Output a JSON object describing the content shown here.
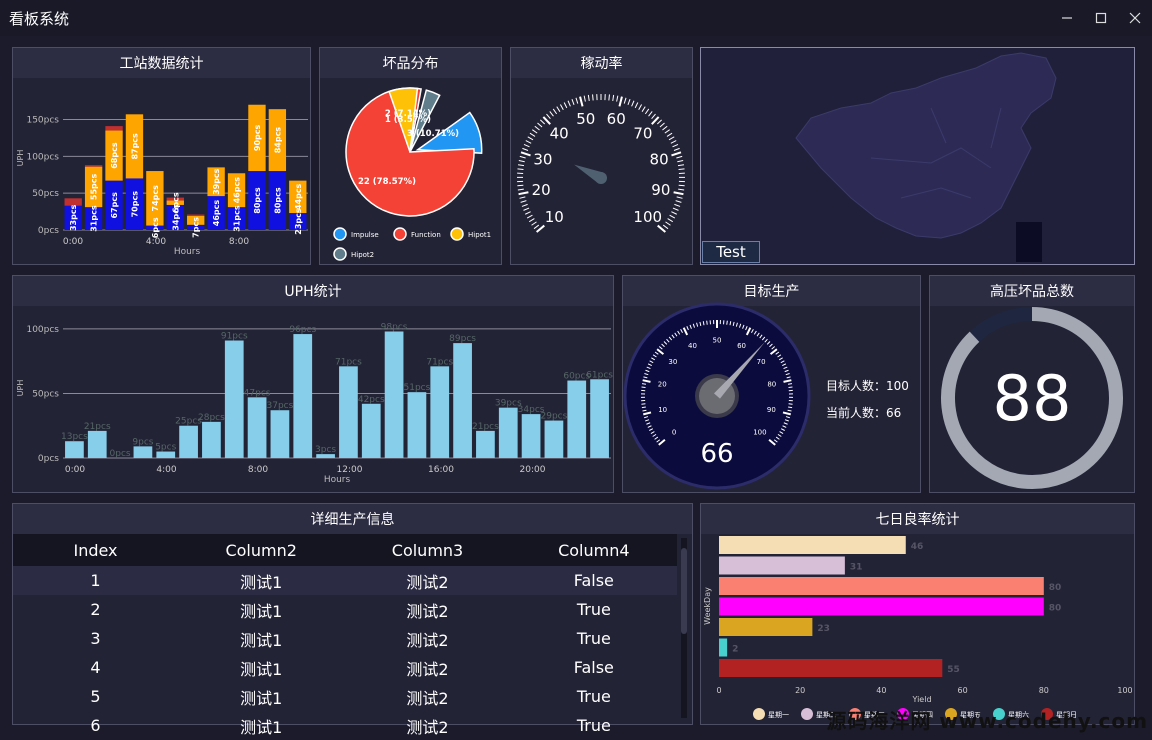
{
  "window": {
    "title": "看板系统",
    "min_icon": "minimize-icon",
    "max_icon": "maximize-icon",
    "close_icon": "close-icon"
  },
  "panels": {
    "station": "工站数据统计",
    "defect": "坏品分布",
    "util": "稼动率",
    "uph": "UPH统计",
    "target": "目标生产",
    "hv": "高压坏品总数",
    "detail": "详细生产信息",
    "yield": "七日良率统计"
  },
  "map": {
    "button": "Test"
  },
  "target": {
    "label1": "目标人数：100",
    "label2": "当前人数：66",
    "value": 66
  },
  "hv": {
    "value": "88",
    "fraction": 0.88
  },
  "table": {
    "headers": [
      "Index",
      "Column2",
      "Column3",
      "Column4"
    ],
    "rows": [
      [
        "1",
        "测试1",
        "测试2",
        "False"
      ],
      [
        "2",
        "测试1",
        "测试2",
        "True"
      ],
      [
        "3",
        "测试1",
        "测试2",
        "True"
      ],
      [
        "4",
        "测试1",
        "测试2",
        "False"
      ],
      [
        "5",
        "测试1",
        "测试2",
        "True"
      ],
      [
        "6",
        "测试1",
        "测试2",
        "True"
      ]
    ]
  },
  "watermark": "源码海洋网 www.codehy.com",
  "chart_data": [
    {
      "id": "station",
      "type": "bar",
      "ylabel": "UPH",
      "xlabel": "Hours",
      "ylim": [
        0,
        190
      ],
      "yticks": [
        "0pcs",
        "50pcs",
        "100pcs",
        "150pcs"
      ],
      "xticks": [
        "0:00",
        "4:00",
        "8:00"
      ],
      "series": [
        {
          "name": "blue",
          "color": "#1010e0",
          "values": [
            33,
            31,
            67,
            70,
            6,
            34,
            7,
            46,
            31,
            80,
            80,
            23
          ]
        },
        {
          "name": "orange",
          "color": "#ffa500",
          "values": [
            0,
            55,
            68,
            87,
            74,
            6,
            12,
            39,
            46,
            90,
            84,
            44
          ]
        },
        {
          "name": "red",
          "color": "#c03030",
          "values": [
            10,
            2,
            6,
            0,
            0,
            4,
            2,
            0,
            0,
            0,
            0,
            0
          ]
        }
      ],
      "labels_blue": [
        "33pcs",
        "31pcs",
        "67pcs",
        "70pcs",
        "6pcs",
        "34pcs",
        "7pcs",
        "46pcs",
        "31pcs",
        "80pcs",
        "80pcs",
        "23pcs"
      ],
      "labels_orange": [
        "",
        "55pcs",
        "68pcs",
        "87pcs",
        "74pcs",
        "6pcs",
        "",
        "39pcs",
        "46pcs",
        "90pcs",
        "84pcs",
        "44pcs"
      ]
    },
    {
      "id": "defect",
      "type": "pie",
      "slices": [
        {
          "name": "Impulse",
          "value": 3,
          "label": "3 (10.71%)",
          "color": "#2196f3"
        },
        {
          "name": "Function",
          "value": 22,
          "label": "22 (78.57%)",
          "color": "#f44336"
        },
        {
          "name": "Hipot1",
          "value": 2,
          "label": "2 (7.14%)",
          "color": "#ffc107"
        },
        {
          "name": "Hipot2",
          "value": 1,
          "label": "1 (3.57%)",
          "color": "#607d8b"
        }
      ]
    },
    {
      "id": "util",
      "type": "gauge",
      "min": 10,
      "max": 100,
      "ticks": [
        "10",
        "20",
        "30",
        "40",
        "50",
        "60",
        "70",
        "80",
        "90",
        "100"
      ],
      "value": 33
    },
    {
      "id": "uph",
      "type": "bar",
      "ylabel": "UPH",
      "xlabel": "Hours",
      "ylim": [
        0,
        110
      ],
      "yticks": [
        "0pcs",
        "50pcs",
        "100pcs"
      ],
      "xticks": [
        "0:00",
        "4:00",
        "8:00",
        "12:00",
        "16:00",
        "20:00"
      ],
      "values": [
        13,
        21,
        0,
        9,
        5,
        25,
        28,
        91,
        47,
        37,
        96,
        3,
        71,
        42,
        98,
        51,
        71,
        89,
        21,
        39,
        34,
        29,
        60,
        61
      ],
      "labels": [
        "13pcs",
        "21pcs",
        "0pcs",
        "9pcs",
        "5pcs",
        "25pcs",
        "28pcs",
        "91pcs",
        "47pcs",
        "37pcs",
        "96pcs",
        "3pcs",
        "71pcs",
        "42pcs",
        "98pcs",
        "51pcs",
        "71pcs",
        "89pcs",
        "21pcs",
        "39pcs",
        "34pcs",
        "29pcs",
        "60pcs",
        "61pcs"
      ],
      "color": "#87ceeb"
    },
    {
      "id": "target",
      "type": "gauge",
      "min": 0,
      "max": 100,
      "ticks": [
        "0",
        "10",
        "20",
        "30",
        "40",
        "50",
        "60",
        "70",
        "80",
        "90",
        "100"
      ],
      "value": 66
    },
    {
      "id": "yield",
      "type": "bar",
      "orientation": "horizontal",
      "xlabel": "Yield",
      "ylabel": "WeekDay",
      "xlim": [
        0,
        100
      ],
      "xticks": [
        "0",
        "20",
        "40",
        "60",
        "80",
        "100"
      ],
      "categories": [
        "星期一",
        "星期二",
        "星期三",
        "星期四",
        "星期五",
        "星期六",
        "星期日"
      ],
      "values": [
        46,
        31,
        80,
        80,
        23,
        2,
        55
      ],
      "colors": [
        "#f5deb3",
        "#d8bfd8",
        "#fa8072",
        "#ff00ff",
        "#daa520",
        "#48d1cc",
        "#b22222"
      ]
    }
  ]
}
